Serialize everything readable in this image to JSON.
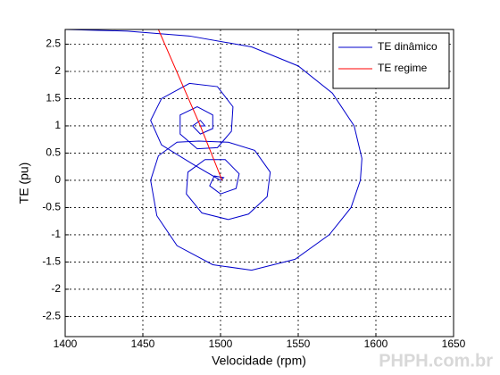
{
  "chart_data": {
    "type": "line",
    "xlabel": "Velocidade (rpm)",
    "ylabel": "TE (pu)",
    "xlim": [
      1400,
      1650
    ],
    "ylim": [
      -2.87,
      2.77
    ],
    "xticks": [
      1400,
      1450,
      1500,
      1550,
      1600,
      1650
    ],
    "yticks": [
      -2.5,
      -2,
      -1.5,
      -1,
      -0.5,
      0,
      0.5,
      1,
      1.5,
      2,
      2.5
    ],
    "grid": true,
    "legend": "top-right",
    "series": [
      {
        "name": "TE dinâmico",
        "color": "#0000cc",
        "x": [
          1400,
          1440,
          1480,
          1520,
          1550,
          1572,
          1586,
          1591,
          1590,
          1584,
          1570,
          1548,
          1520,
          1495,
          1472,
          1459,
          1455,
          1460,
          1472,
          1486,
          1505,
          1522,
          1532,
          1530,
          1518,
          1505,
          1488,
          1478,
          1479,
          1490,
          1503,
          1512,
          1510,
          1500,
          1493,
          1496,
          1502,
          1500,
          1482,
          1462,
          1455,
          1462,
          1480,
          1498,
          1508,
          1507,
          1498,
          1485,
          1474,
          1474,
          1485,
          1495,
          1495,
          1487,
          1482,
          1487,
          1490,
          1487
        ],
        "values": [
          2.77,
          2.74,
          2.65,
          2.45,
          2.1,
          1.6,
          1.0,
          0.4,
          0,
          -0.5,
          -1.0,
          -1.45,
          -1.65,
          -1.55,
          -1.2,
          -0.65,
          0,
          0.45,
          0.7,
          0.72,
          0.7,
          0.55,
          0.15,
          -0.3,
          -0.62,
          -0.72,
          -0.6,
          -0.25,
          0.15,
          0.38,
          0.38,
          0.12,
          -0.15,
          -0.25,
          -0.1,
          0.08,
          0.05,
          0,
          0.3,
          0.65,
          1.1,
          1.5,
          1.78,
          1.72,
          1.35,
          0.9,
          0.6,
          0.58,
          0.85,
          1.2,
          1.35,
          1.2,
          0.95,
          0.85,
          1.0,
          1.1,
          1.0,
          1
        ]
      },
      {
        "name": "TE regime",
        "color": "#ff0000",
        "x": [
          1460,
          1487,
          1501
        ],
        "values": [
          2.77,
          1,
          0
        ]
      }
    ],
    "watermark": "PHPH.com.br"
  }
}
